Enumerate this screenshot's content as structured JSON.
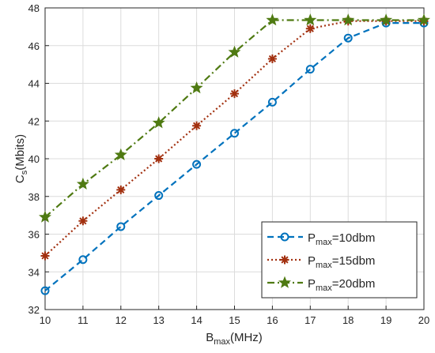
{
  "chart_data": {
    "type": "line",
    "xlabel": {
      "main": "B",
      "sub": "max",
      "rest": "(MHz)"
    },
    "ylabel": {
      "main": "C",
      "sub": "s",
      "rest": "(Mbits)"
    },
    "xlim": [
      10,
      20
    ],
    "ylim": [
      32,
      48
    ],
    "xticks": [
      10,
      11,
      12,
      13,
      14,
      15,
      16,
      17,
      18,
      19,
      20
    ],
    "yticks": [
      32,
      34,
      36,
      38,
      40,
      42,
      44,
      46,
      48
    ],
    "grid": true,
    "legend_position": "bottom-right",
    "x": [
      10,
      11,
      12,
      13,
      14,
      15,
      16,
      17,
      18,
      19,
      20
    ],
    "series": [
      {
        "name": {
          "main": "P",
          "sub": "max",
          "rest": "=10dbm"
        },
        "values": [
          33.0,
          34.65,
          36.4,
          38.05,
          39.7,
          41.35,
          43.0,
          44.75,
          46.4,
          47.2,
          47.2
        ],
        "color": "#0072BD",
        "line_style": "dashed",
        "marker": "circle"
      },
      {
        "name": {
          "main": "P",
          "sub": "max",
          "rest": "=15dbm"
        },
        "values": [
          34.85,
          36.7,
          38.35,
          40.0,
          41.75,
          43.45,
          45.3,
          46.9,
          47.3,
          47.3,
          47.3
        ],
        "color": "#A2300F",
        "line_style": "dotted",
        "marker": "asterisk"
      },
      {
        "name": {
          "main": "P",
          "sub": "max",
          "rest": "=20dbm"
        },
        "values": [
          36.9,
          38.65,
          40.2,
          41.9,
          43.75,
          45.65,
          47.35,
          47.35,
          47.35,
          47.35,
          47.35
        ],
        "color": "#4F7A12",
        "line_style": "dash-dot",
        "marker": "star"
      }
    ]
  }
}
